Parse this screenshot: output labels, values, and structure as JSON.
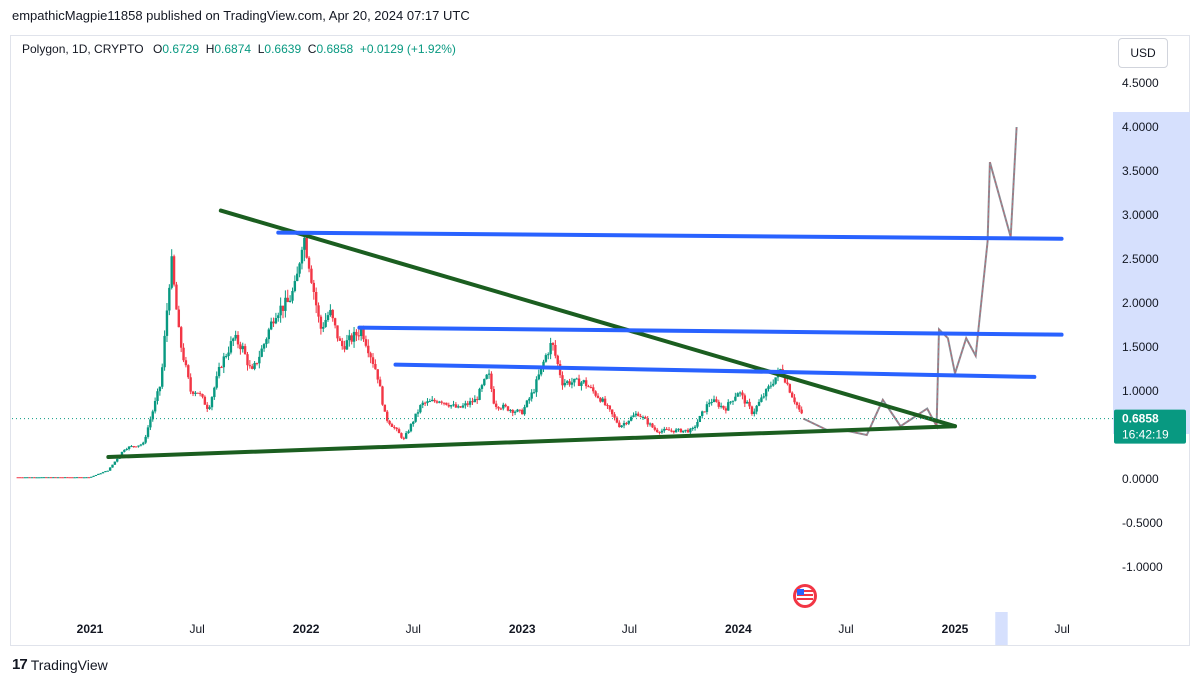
{
  "publish_line": "empathicMagpie11858 published on TradingView.com, Apr 20, 2024 07:17 UTC",
  "legend": {
    "symbol": "Polygon, 1D, CRYPTO",
    "open_label": "O",
    "open": "0.6729",
    "high_label": "H",
    "high": "0.6874",
    "low_label": "L",
    "low": "0.6639",
    "close_label": "C",
    "close": "0.6858",
    "change": "+0.0129 (+1.92%)"
  },
  "currency": "USD",
  "brand": "TradingView",
  "colors": {
    "up": "#089981",
    "down": "#f23645",
    "trendline_green": "#1b5e20",
    "level_blue": "#2962ff",
    "price_tag": "#089981",
    "highlight": "#d6e0fd"
  },
  "chart_data": {
    "type": "candlestick",
    "y_ticks": [
      "4.5000",
      "4.0000",
      "3.5000",
      "3.0000",
      "2.5000",
      "2.0000",
      "1.5000",
      "1.0000",
      "0.0000",
      "-0.5000",
      "-1.0000"
    ],
    "x_ticks": [
      "2021",
      "Jul",
      "2022",
      "Jul",
      "2023",
      "Jul",
      "2024",
      "Jul",
      "2025",
      "Jul"
    ],
    "ylim": [
      -1.5,
      4.8
    ],
    "last_price": "0.6858",
    "countdown": "16:42:19",
    "price_path": [
      [
        "2020-09-01",
        0.02
      ],
      [
        "2021-01-01",
        0.02
      ],
      [
        "2021-02-01",
        0.1
      ],
      [
        "2021-03-01",
        0.35
      ],
      [
        "2021-04-01",
        0.4
      ],
      [
        "2021-05-01",
        1.1
      ],
      [
        "2021-05-18",
        2.5
      ],
      [
        "2021-06-01",
        1.6
      ],
      [
        "2021-06-20",
        1.0
      ],
      [
        "2021-07-01",
        1.0
      ],
      [
        "2021-07-20",
        0.8
      ],
      [
        "2021-08-10",
        1.3
      ],
      [
        "2021-09-01",
        1.6
      ],
      [
        "2021-09-15",
        1.5
      ],
      [
        "2021-10-01",
        1.2
      ],
      [
        "2021-10-20",
        1.5
      ],
      [
        "2021-11-10",
        1.9
      ],
      [
        "2021-12-01",
        2.0
      ],
      [
        "2021-12-15",
        2.2
      ],
      [
        "2021-12-27",
        2.8
      ],
      [
        "2022-01-05",
        2.5
      ],
      [
        "2022-01-25",
        1.7
      ],
      [
        "2022-02-10",
        1.9
      ],
      [
        "2022-03-01",
        1.5
      ],
      [
        "2022-03-20",
        1.6
      ],
      [
        "2022-04-05",
        1.7
      ],
      [
        "2022-05-01",
        1.2
      ],
      [
        "2022-05-15",
        0.7
      ],
      [
        "2022-06-15",
        0.45
      ],
      [
        "2022-07-15",
        0.85
      ],
      [
        "2022-08-15",
        0.9
      ],
      [
        "2022-09-15",
        0.8
      ],
      [
        "2022-10-15",
        0.9
      ],
      [
        "2022-11-05",
        1.2
      ],
      [
        "2022-11-15",
        0.85
      ],
      [
        "2022-12-31",
        0.75
      ],
      [
        "2023-01-20",
        1.0
      ],
      [
        "2023-02-10",
        1.4
      ],
      [
        "2023-02-20",
        1.55
      ],
      [
        "2023-03-10",
        1.1
      ],
      [
        "2023-04-15",
        1.1
      ],
      [
        "2023-05-15",
        0.9
      ],
      [
        "2023-06-15",
        0.6
      ],
      [
        "2023-07-15",
        0.75
      ],
      [
        "2023-08-15",
        0.55
      ],
      [
        "2023-10-15",
        0.55
      ],
      [
        "2023-11-15",
        0.9
      ],
      [
        "2023-12-10",
        0.8
      ],
      [
        "2024-01-01",
        1.0
      ],
      [
        "2024-01-25",
        0.75
      ],
      [
        "2024-03-13",
        1.25
      ],
      [
        "2024-04-01",
        0.95
      ],
      [
        "2024-04-20",
        0.6858
      ]
    ],
    "projection_path": [
      [
        "2024-04-20",
        0.6858
      ],
      [
        "2024-06-01",
        0.55
      ],
      [
        "2024-07-01",
        0.55
      ],
      [
        "2024-08-05",
        0.5
      ],
      [
        "2024-09-01",
        0.9
      ],
      [
        "2024-10-01",
        0.6
      ],
      [
        "2024-11-15",
        0.8
      ],
      [
        "2024-12-01",
        0.6
      ],
      [
        "2024-12-05",
        1.7
      ],
      [
        "2024-12-20",
        1.6
      ],
      [
        "2025-01-01",
        1.2
      ],
      [
        "2025-01-20",
        1.6
      ],
      [
        "2025-02-05",
        1.4
      ],
      [
        "2025-02-25",
        2.7
      ],
      [
        "2025-03-01",
        3.6
      ],
      [
        "2025-04-05",
        2.75
      ],
      [
        "2025-04-15",
        4.0
      ]
    ],
    "trendlines": [
      {
        "color": "green",
        "from": [
          "2021-08-10",
          3.05
        ],
        "to": [
          "2025-01-01",
          0.6
        ]
      },
      {
        "color": "green",
        "from": [
          "2021-02-01",
          0.25
        ],
        "to": [
          "2025-01-01",
          0.6
        ]
      },
      {
        "color": "blue",
        "from": [
          "2021-11-15",
          2.8
        ],
        "to": [
          "2025-06-30",
          2.73
        ]
      },
      {
        "color": "blue",
        "from": [
          "2022-04-01",
          1.72
        ],
        "to": [
          "2025-06-30",
          1.64
        ]
      },
      {
        "color": "blue",
        "from": [
          "2022-06-01",
          1.3
        ],
        "to": [
          "2025-05-15",
          1.16
        ]
      }
    ],
    "highlight_region": [
      "2025-03-10",
      "2025-03-31"
    ]
  }
}
